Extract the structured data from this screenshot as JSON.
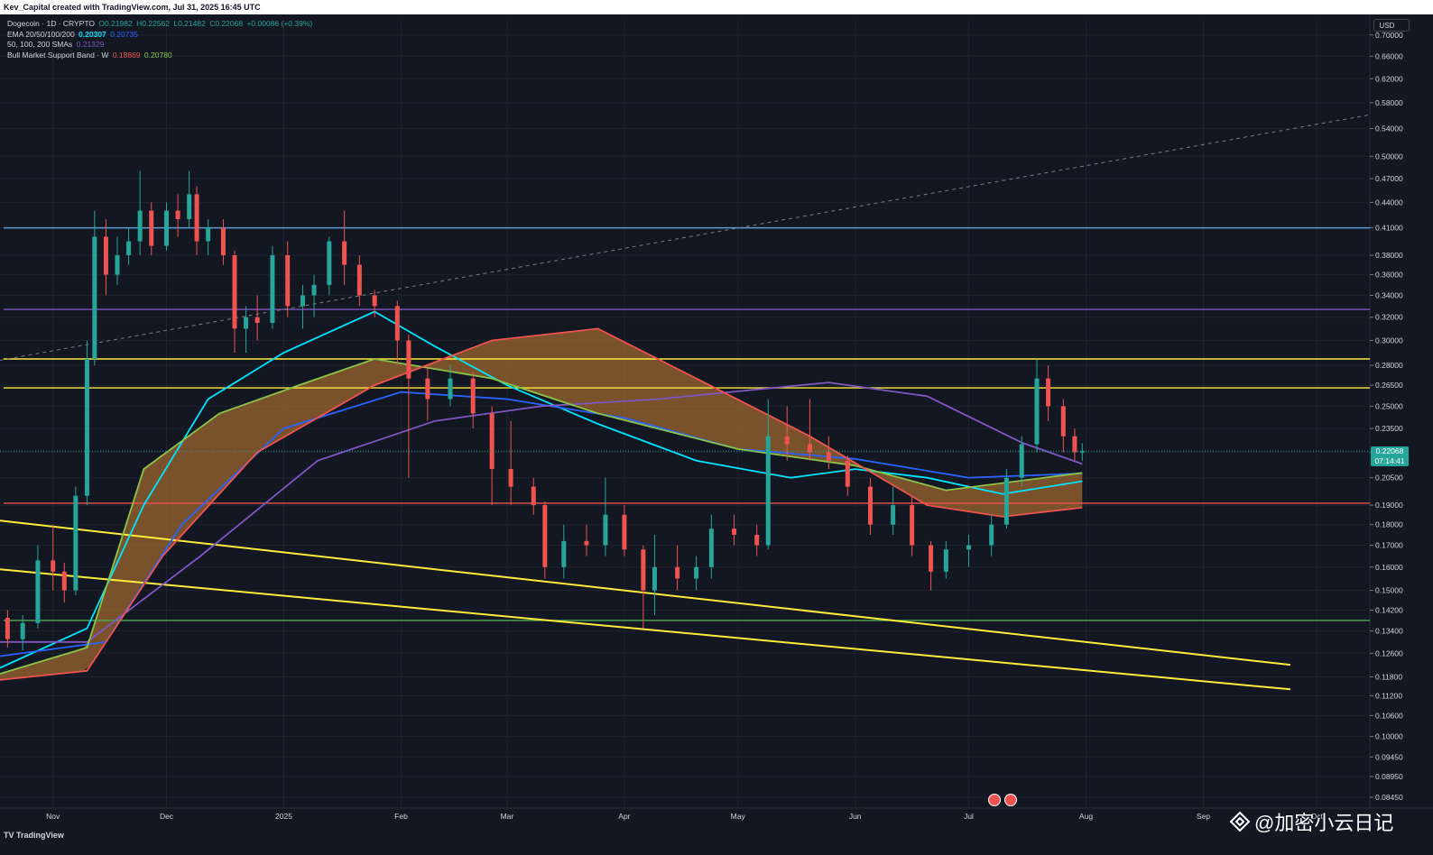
{
  "header": {
    "title": "Kev_Capital created with TradingView.com, Jul 31, 2025 16:45 UTC"
  },
  "legend": {
    "symbol": "Dogecoin · 1D · CRYPTO",
    "ohlc": [
      {
        "k": "O",
        "v": "0.21982"
      },
      {
        "k": "H",
        "v": "0.22562"
      },
      {
        "k": "L",
        "v": "0.21482"
      },
      {
        "k": "C",
        "v": "0.22068"
      }
    ],
    "change": "+0.00086 (+0.39%)",
    "ema_label": "EMA 20/50/100/200",
    "ema_value1": "0.20307",
    "ema_value2": "0.20735",
    "sma_label": "50, 100, 200 SMAs",
    "sma_value": "0.21329",
    "bmsb_label": "Bull Market Support Band · W",
    "bmsb_value1": "0.18869",
    "bmsb_value2": "0.20780"
  },
  "price_axis": {
    "currency": "USD",
    "current_price": "0.22068",
    "countdown": "07:14:41",
    "ticks": [
      "0.70000",
      "0.66000",
      "0.62000",
      "0.58000",
      "0.54000",
      "0.50000",
      "0.47000",
      "0.44000",
      "0.41000",
      "0.38000",
      "0.36000",
      "0.34000",
      "0.32000",
      "0.30000",
      "0.28000",
      "0.26500",
      "0.25000",
      "0.23500",
      "0.22000",
      "0.20500",
      "0.19000",
      "0.18000",
      "0.17000",
      "0.16000",
      "0.15000",
      "0.14200",
      "0.13400",
      "0.12600",
      "0.11800",
      "0.11200",
      "0.10600",
      "0.10000",
      "0.09450",
      "0.08950",
      "0.08450"
    ]
  },
  "time_axis": {
    "labels": [
      "Nov",
      "Dec",
      "2025",
      "Feb",
      "Mar",
      "Apr",
      "May",
      "Jun",
      "Jul",
      "Aug",
      "Sep",
      "Oct"
    ]
  },
  "footer": {
    "brand": "TradingView",
    "watermark": "@加密小云日记"
  },
  "colors": {
    "bg": "#131722",
    "up": "#26a69a",
    "down": "#ef5350",
    "yellow": "#ffeb3b",
    "blue_line": "#5b9bd5",
    "purple_line": "#7e57c2",
    "red_line": "#ef5350",
    "green_line": "#4caf50"
  },
  "chart_data": {
    "type": "candlestick",
    "symbol": "Dogecoin",
    "interval": "1D",
    "y_scale": "log",
    "ylim": [
      0.082,
      0.73
    ],
    "x_range": [
      "2024-10-18",
      "2025-10-15"
    ],
    "horizontal_levels": [
      {
        "price": 0.41,
        "color": "#5b9bd5"
      },
      {
        "price": 0.327,
        "color": "#7e57c2"
      },
      {
        "price": 0.285,
        "color": "#ffeb3b"
      },
      {
        "price": 0.263,
        "color": "#ffeb3b"
      },
      {
        "price": 0.191,
        "color": "#ef5350"
      },
      {
        "price": 0.138,
        "color": "#4caf50"
      }
    ],
    "trend_lines": [
      {
        "color": "#ffeb3b",
        "points": [
          [
            "2024-10-18",
            0.182
          ],
          [
            "2025-09-24",
            0.122
          ]
        ]
      },
      {
        "color": "#ffeb3b",
        "points": [
          [
            "2024-10-18",
            0.159
          ],
          [
            "2025-09-24",
            0.114
          ]
        ]
      },
      {
        "color": "#787b86",
        "style": "dashed",
        "points": [
          [
            "2024-10-18",
            0.284
          ],
          [
            "2025-10-15",
            0.561
          ]
        ]
      }
    ],
    "candles": [
      [
        "2024-10-20",
        0.139,
        0.142,
        0.128,
        0.131
      ],
      [
        "2024-10-24",
        0.131,
        0.14,
        0.127,
        0.137
      ],
      [
        "2024-10-28",
        0.137,
        0.17,
        0.135,
        0.163
      ],
      [
        "2024-11-01",
        0.163,
        0.18,
        0.15,
        0.158
      ],
      [
        "2024-11-04",
        0.158,
        0.162,
        0.145,
        0.15
      ],
      [
        "2024-11-07",
        0.15,
        0.2,
        0.148,
        0.195
      ],
      [
        "2024-11-10",
        0.195,
        0.3,
        0.19,
        0.285
      ],
      [
        "2024-11-12",
        0.285,
        0.43,
        0.28,
        0.4
      ],
      [
        "2024-11-15",
        0.4,
        0.42,
        0.34,
        0.36
      ],
      [
        "2024-11-18",
        0.36,
        0.4,
        0.35,
        0.38
      ],
      [
        "2024-11-21",
        0.38,
        0.41,
        0.37,
        0.395
      ],
      [
        "2024-11-24",
        0.395,
        0.48,
        0.38,
        0.43
      ],
      [
        "2024-11-27",
        0.43,
        0.44,
        0.38,
        0.39
      ],
      [
        "2024-12-01",
        0.39,
        0.44,
        0.385,
        0.43
      ],
      [
        "2024-12-04",
        0.43,
        0.45,
        0.4,
        0.42
      ],
      [
        "2024-12-07",
        0.42,
        0.48,
        0.41,
        0.45
      ],
      [
        "2024-12-09",
        0.45,
        0.46,
        0.38,
        0.395
      ],
      [
        "2024-12-12",
        0.395,
        0.42,
        0.38,
        0.41
      ],
      [
        "2024-12-16",
        0.41,
        0.42,
        0.37,
        0.38
      ],
      [
        "2024-12-19",
        0.38,
        0.385,
        0.29,
        0.31
      ],
      [
        "2024-12-22",
        0.31,
        0.33,
        0.29,
        0.32
      ],
      [
        "2024-12-25",
        0.32,
        0.34,
        0.3,
        0.315
      ],
      [
        "2024-12-29",
        0.315,
        0.39,
        0.31,
        0.38
      ],
      [
        "2025-01-02",
        0.38,
        0.395,
        0.32,
        0.33
      ],
      [
        "2025-01-06",
        0.33,
        0.35,
        0.31,
        0.34
      ],
      [
        "2025-01-09",
        0.34,
        0.36,
        0.32,
        0.35
      ],
      [
        "2025-01-13",
        0.35,
        0.4,
        0.34,
        0.395
      ],
      [
        "2025-01-17",
        0.395,
        0.43,
        0.35,
        0.37
      ],
      [
        "2025-01-21",
        0.37,
        0.38,
        0.33,
        0.34
      ],
      [
        "2025-01-25",
        0.34,
        0.345,
        0.32,
        0.33
      ],
      [
        "2025-01-31",
        0.33,
        0.335,
        0.28,
        0.3
      ],
      [
        "2025-02-03",
        0.3,
        0.305,
        0.205,
        0.27
      ],
      [
        "2025-02-08",
        0.27,
        0.28,
        0.24,
        0.255
      ],
      [
        "2025-02-14",
        0.255,
        0.28,
        0.25,
        0.27
      ],
      [
        "2025-02-20",
        0.27,
        0.275,
        0.235,
        0.245
      ],
      [
        "2025-02-25",
        0.245,
        0.25,
        0.19,
        0.21
      ],
      [
        "2025-03-02",
        0.21,
        0.24,
        0.19,
        0.2
      ],
      [
        "2025-03-08",
        0.2,
        0.205,
        0.185,
        0.19
      ],
      [
        "2025-03-11",
        0.19,
        0.192,
        0.155,
        0.16
      ],
      [
        "2025-03-16",
        0.16,
        0.18,
        0.155,
        0.172
      ],
      [
        "2025-03-22",
        0.172,
        0.18,
        0.165,
        0.17
      ],
      [
        "2025-03-27",
        0.17,
        0.205,
        0.165,
        0.185
      ],
      [
        "2025-04-01",
        0.185,
        0.19,
        0.165,
        0.168
      ],
      [
        "2025-04-06",
        0.168,
        0.17,
        0.135,
        0.15
      ],
      [
        "2025-04-09",
        0.15,
        0.175,
        0.14,
        0.16
      ],
      [
        "2025-04-15",
        0.16,
        0.17,
        0.15,
        0.155
      ],
      [
        "2025-04-20",
        0.155,
        0.165,
        0.15,
        0.16
      ],
      [
        "2025-04-24",
        0.16,
        0.185,
        0.155,
        0.178
      ],
      [
        "2025-04-30",
        0.178,
        0.185,
        0.17,
        0.175
      ],
      [
        "2025-05-06",
        0.175,
        0.18,
        0.165,
        0.17
      ],
      [
        "2025-05-09",
        0.17,
        0.255,
        0.168,
        0.23
      ],
      [
        "2025-05-14",
        0.23,
        0.25,
        0.215,
        0.225
      ],
      [
        "2025-05-20",
        0.225,
        0.255,
        0.215,
        0.22
      ],
      [
        "2025-05-25",
        0.22,
        0.23,
        0.21,
        0.215
      ],
      [
        "2025-05-30",
        0.215,
        0.218,
        0.195,
        0.2
      ],
      [
        "2025-06-05",
        0.2,
        0.205,
        0.175,
        0.18
      ],
      [
        "2025-06-11",
        0.18,
        0.2,
        0.175,
        0.19
      ],
      [
        "2025-06-16",
        0.19,
        0.195,
        0.165,
        0.17
      ],
      [
        "2025-06-21",
        0.17,
        0.172,
        0.15,
        0.158
      ],
      [
        "2025-06-25",
        0.158,
        0.172,
        0.155,
        0.168
      ],
      [
        "2025-07-01",
        0.168,
        0.175,
        0.16,
        0.17
      ],
      [
        "2025-07-07",
        0.17,
        0.185,
        0.165,
        0.18
      ],
      [
        "2025-07-11",
        0.18,
        0.21,
        0.178,
        0.205
      ],
      [
        "2025-07-15",
        0.205,
        0.23,
        0.2,
        0.225
      ],
      [
        "2025-07-19",
        0.225,
        0.285,
        0.22,
        0.27
      ],
      [
        "2025-07-22",
        0.27,
        0.28,
        0.24,
        0.25
      ],
      [
        "2025-07-26",
        0.25,
        0.255,
        0.22,
        0.23
      ],
      [
        "2025-07-29",
        0.23,
        0.235,
        0.215,
        0.22
      ],
      [
        "2025-07-31",
        0.21982,
        0.22562,
        0.21482,
        0.22068
      ]
    ],
    "indicators": [
      {
        "name": "EMA",
        "color": "#00e5ff",
        "points": [
          [
            "2024-10-18",
            0.121
          ],
          [
            "2024-11-10",
            0.135
          ],
          [
            "2024-11-25",
            0.19
          ],
          [
            "2024-12-12",
            0.255
          ],
          [
            "2025-01-01",
            0.29
          ],
          [
            "2025-01-25",
            0.325
          ],
          [
            "2025-02-10",
            0.295
          ],
          [
            "2025-03-01",
            0.265
          ],
          [
            "2025-03-25",
            0.238
          ],
          [
            "2025-04-20",
            0.215
          ],
          [
            "2025-05-15",
            0.205
          ],
          [
            "2025-06-01",
            0.21
          ],
          [
            "2025-06-20",
            0.205
          ],
          [
            "2025-07-10",
            0.196
          ],
          [
            "2025-07-31",
            0.203
          ]
        ]
      },
      {
        "name": "EMA",
        "color": "#2962ff",
        "points": [
          [
            "2024-10-18",
            0.125
          ],
          [
            "2024-11-15",
            0.13
          ],
          [
            "2024-12-05",
            0.18
          ],
          [
            "2025-01-01",
            0.235
          ],
          [
            "2025-02-01",
            0.26
          ],
          [
            "2025-03-01",
            0.255
          ],
          [
            "2025-04-01",
            0.242
          ],
          [
            "2025-05-01",
            0.222
          ],
          [
            "2025-06-01",
            0.216
          ],
          [
            "2025-07-01",
            0.205
          ],
          [
            "2025-07-31",
            0.2075
          ]
        ]
      },
      {
        "name": "SMA",
        "color": "#7e57c2",
        "points": [
          [
            "2024-10-18",
            0.13
          ],
          [
            "2024-11-10",
            0.13
          ],
          [
            "2024-12-10",
            0.165
          ],
          [
            "2025-01-10",
            0.215
          ],
          [
            "2025-02-10",
            0.24
          ],
          [
            "2025-03-10",
            0.25
          ],
          [
            "2025-04-10",
            0.255
          ],
          [
            "2025-05-25",
            0.267
          ],
          [
            "2025-06-20",
            0.257
          ],
          [
            "2025-07-15",
            0.226
          ],
          [
            "2025-07-31",
            0.213
          ]
        ]
      },
      {
        "name": "BMSB upper",
        "color": "#8bc34a",
        "points": [
          [
            "2024-10-18",
            0.119
          ],
          [
            "2024-11-10",
            0.128
          ],
          [
            "2024-11-25",
            0.21
          ],
          [
            "2024-12-15",
            0.245
          ],
          [
            "2025-01-05",
            0.265
          ],
          [
            "2025-01-25",
            0.285
          ],
          [
            "2025-02-25",
            0.27
          ],
          [
            "2025-03-25",
            0.245
          ],
          [
            "2025-05-01",
            0.222
          ],
          [
            "2025-06-01",
            0.212
          ],
          [
            "2025-06-25",
            0.198
          ],
          [
            "2025-07-31",
            0.2078
          ]
        ]
      },
      {
        "name": "BMSB lower",
        "color": "#ef5350",
        "points": [
          [
            "2024-10-18",
            0.117
          ],
          [
            "2024-11-10",
            0.12
          ],
          [
            "2024-11-30",
            0.165
          ],
          [
            "2024-12-25",
            0.22
          ],
          [
            "2025-01-25",
            0.265
          ],
          [
            "2025-02-25",
            0.3
          ],
          [
            "2025-03-25",
            0.31
          ],
          [
            "2025-04-20",
            0.27
          ],
          [
            "2025-05-20",
            0.23
          ],
          [
            "2025-06-20",
            0.19
          ],
          [
            "2025-07-10",
            0.184
          ],
          [
            "2025-07-31",
            0.1887
          ]
        ]
      }
    ]
  }
}
